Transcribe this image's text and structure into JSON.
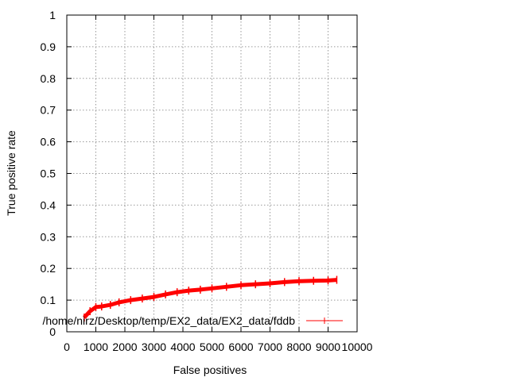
{
  "chart_data": {
    "type": "line",
    "title": "",
    "xlabel": "False positives",
    "ylabel": "True positive rate",
    "xlim": [
      0,
      10000
    ],
    "ylim": [
      0,
      1
    ],
    "xticks": [
      0,
      1000,
      2000,
      3000,
      4000,
      5000,
      6000,
      7000,
      8000,
      9000,
      10000
    ],
    "yticks": [
      0,
      0.1,
      0.2,
      0.3,
      0.4,
      0.5,
      0.6,
      0.7,
      0.8,
      0.9,
      1
    ],
    "xtick_labels": [
      "0",
      "1000",
      "2000",
      "3000",
      "4000",
      "5000",
      "6000",
      "7000",
      "8000",
      "9000",
      "10000"
    ],
    "ytick_labels": [
      "0",
      "0.1",
      "0.2",
      "0.3",
      "0.4",
      "0.5",
      "0.6",
      "0.7",
      "0.8",
      "0.9",
      "1"
    ],
    "grid": true,
    "legend_position": "bottom-right",
    "series": [
      {
        "name": "/home/nirz/Desktop/temp/EX2_data/EX2_data/fddb",
        "color": "#ff0000",
        "x": [
          600,
          800,
          1000,
          1200,
          1500,
          1800,
          2200,
          2600,
          3000,
          3400,
          3800,
          4200,
          4600,
          5000,
          5500,
          6000,
          6500,
          7000,
          7500,
          8000,
          8500,
          9000,
          9300
        ],
        "y": [
          0.045,
          0.065,
          0.078,
          0.08,
          0.085,
          0.093,
          0.1,
          0.105,
          0.11,
          0.118,
          0.125,
          0.13,
          0.133,
          0.137,
          0.142,
          0.147,
          0.15,
          0.153,
          0.157,
          0.16,
          0.161,
          0.162,
          0.164
        ]
      }
    ]
  }
}
